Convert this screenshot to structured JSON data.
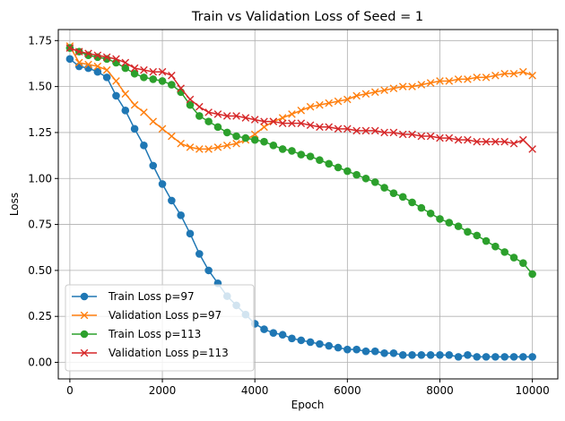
{
  "chart_data": {
    "type": "line",
    "title": "Train vs Validation Loss of Seed = 1",
    "xlabel": "Epoch",
    "ylabel": "Loss",
    "xlim": [
      -250,
      10550
    ],
    "ylim": [
      -0.09,
      1.81
    ],
    "xticks": [
      0,
      2000,
      4000,
      6000,
      8000,
      10000
    ],
    "yticks": [
      0.0,
      0.25,
      0.5,
      0.75,
      1.0,
      1.25,
      1.5,
      1.75
    ],
    "xtick_labels": [
      "0",
      "2000",
      "4000",
      "6000",
      "8000",
      "10000"
    ],
    "ytick_labels": [
      "0.00",
      "0.25",
      "0.50",
      "0.75",
      "1.00",
      "1.25",
      "1.50",
      "1.75"
    ],
    "grid": true,
    "legend_position": "lower-left",
    "series": [
      {
        "name": "Train Loss p=97",
        "color": "#1f77b4",
        "marker": "circle",
        "x": [
          0,
          200,
          400,
          600,
          800,
          1000,
          1200,
          1400,
          1600,
          1800,
          2000,
          2200,
          2400,
          2600,
          2800,
          3000,
          3200,
          3400,
          3600,
          3800,
          4000,
          4200,
          4400,
          4600,
          4800,
          5000,
          5200,
          5400,
          5600,
          5800,
          6000,
          6200,
          6400,
          6600,
          6800,
          7000,
          7200,
          7400,
          7600,
          7800,
          8000,
          8200,
          8400,
          8600,
          8800,
          9000,
          9200,
          9400,
          9600,
          9800,
          10000
        ],
        "y": [
          1.65,
          1.61,
          1.6,
          1.58,
          1.55,
          1.45,
          1.37,
          1.27,
          1.18,
          1.07,
          0.97,
          0.88,
          0.8,
          0.7,
          0.59,
          0.5,
          0.43,
          0.36,
          0.31,
          0.26,
          0.21,
          0.18,
          0.16,
          0.15,
          0.13,
          0.12,
          0.11,
          0.1,
          0.09,
          0.08,
          0.07,
          0.07,
          0.06,
          0.06,
          0.05,
          0.05,
          0.04,
          0.04,
          0.04,
          0.04,
          0.04,
          0.04,
          0.03,
          0.04,
          0.03,
          0.03,
          0.03,
          0.03,
          0.03,
          0.03,
          0.03
        ]
      },
      {
        "name": "Validation Loss p=97",
        "color": "#ff7f0e",
        "marker": "x",
        "x": [
          0,
          200,
          400,
          600,
          800,
          1000,
          1200,
          1400,
          1600,
          1800,
          2000,
          2200,
          2400,
          2600,
          2800,
          3000,
          3200,
          3400,
          3600,
          3800,
          4000,
          4200,
          4400,
          4600,
          4800,
          5000,
          5200,
          5400,
          5600,
          5800,
          6000,
          6200,
          6400,
          6600,
          6800,
          7000,
          7200,
          7400,
          7600,
          7800,
          8000,
          8200,
          8400,
          8600,
          8800,
          9000,
          9200,
          9400,
          9600,
          9800,
          10000
        ],
        "y": [
          1.72,
          1.63,
          1.62,
          1.61,
          1.59,
          1.53,
          1.46,
          1.4,
          1.36,
          1.31,
          1.27,
          1.23,
          1.19,
          1.17,
          1.16,
          1.16,
          1.17,
          1.18,
          1.19,
          1.21,
          1.24,
          1.28,
          1.31,
          1.33,
          1.35,
          1.37,
          1.39,
          1.4,
          1.41,
          1.42,
          1.43,
          1.45,
          1.46,
          1.47,
          1.48,
          1.49,
          1.5,
          1.5,
          1.51,
          1.52,
          1.53,
          1.53,
          1.54,
          1.54,
          1.55,
          1.55,
          1.56,
          1.57,
          1.57,
          1.58,
          1.56
        ]
      },
      {
        "name": "Train Loss p=113",
        "color": "#2ca02c",
        "marker": "circle",
        "x": [
          0,
          200,
          400,
          600,
          800,
          1000,
          1200,
          1400,
          1600,
          1800,
          2000,
          2200,
          2400,
          2600,
          2800,
          3000,
          3200,
          3400,
          3600,
          3800,
          4000,
          4200,
          4400,
          4600,
          4800,
          5000,
          5200,
          5400,
          5600,
          5800,
          6000,
          6200,
          6400,
          6600,
          6800,
          7000,
          7200,
          7400,
          7600,
          7800,
          8000,
          8200,
          8400,
          8600,
          8800,
          9000,
          9200,
          9400,
          9600,
          9800,
          10000
        ],
        "y": [
          1.71,
          1.69,
          1.67,
          1.66,
          1.65,
          1.63,
          1.6,
          1.57,
          1.55,
          1.54,
          1.53,
          1.51,
          1.47,
          1.4,
          1.34,
          1.31,
          1.28,
          1.25,
          1.23,
          1.22,
          1.21,
          1.2,
          1.18,
          1.16,
          1.15,
          1.13,
          1.12,
          1.1,
          1.08,
          1.06,
          1.04,
          1.02,
          1.0,
          0.98,
          0.95,
          0.92,
          0.9,
          0.87,
          0.84,
          0.81,
          0.78,
          0.76,
          0.74,
          0.71,
          0.69,
          0.66,
          0.63,
          0.6,
          0.57,
          0.54,
          0.48
        ]
      },
      {
        "name": "Validation Loss p=113",
        "color": "#d62728",
        "marker": "x",
        "x": [
          0,
          200,
          400,
          600,
          800,
          1000,
          1200,
          1400,
          1600,
          1800,
          2000,
          2200,
          2400,
          2600,
          2800,
          3000,
          3200,
          3400,
          3600,
          3800,
          4000,
          4200,
          4400,
          4600,
          4800,
          5000,
          5200,
          5400,
          5600,
          5800,
          6000,
          6200,
          6400,
          6600,
          6800,
          7000,
          7200,
          7400,
          7600,
          7800,
          8000,
          8200,
          8400,
          8600,
          8800,
          9000,
          9200,
          9400,
          9600,
          9800,
          10000
        ],
        "y": [
          1.71,
          1.69,
          1.68,
          1.67,
          1.66,
          1.65,
          1.63,
          1.6,
          1.59,
          1.58,
          1.58,
          1.56,
          1.49,
          1.43,
          1.39,
          1.36,
          1.35,
          1.34,
          1.34,
          1.33,
          1.32,
          1.31,
          1.31,
          1.3,
          1.3,
          1.3,
          1.29,
          1.28,
          1.28,
          1.27,
          1.27,
          1.26,
          1.26,
          1.26,
          1.25,
          1.25,
          1.24,
          1.24,
          1.23,
          1.23,
          1.22,
          1.22,
          1.21,
          1.21,
          1.2,
          1.2,
          1.2,
          1.2,
          1.19,
          1.21,
          1.16
        ]
      }
    ]
  }
}
